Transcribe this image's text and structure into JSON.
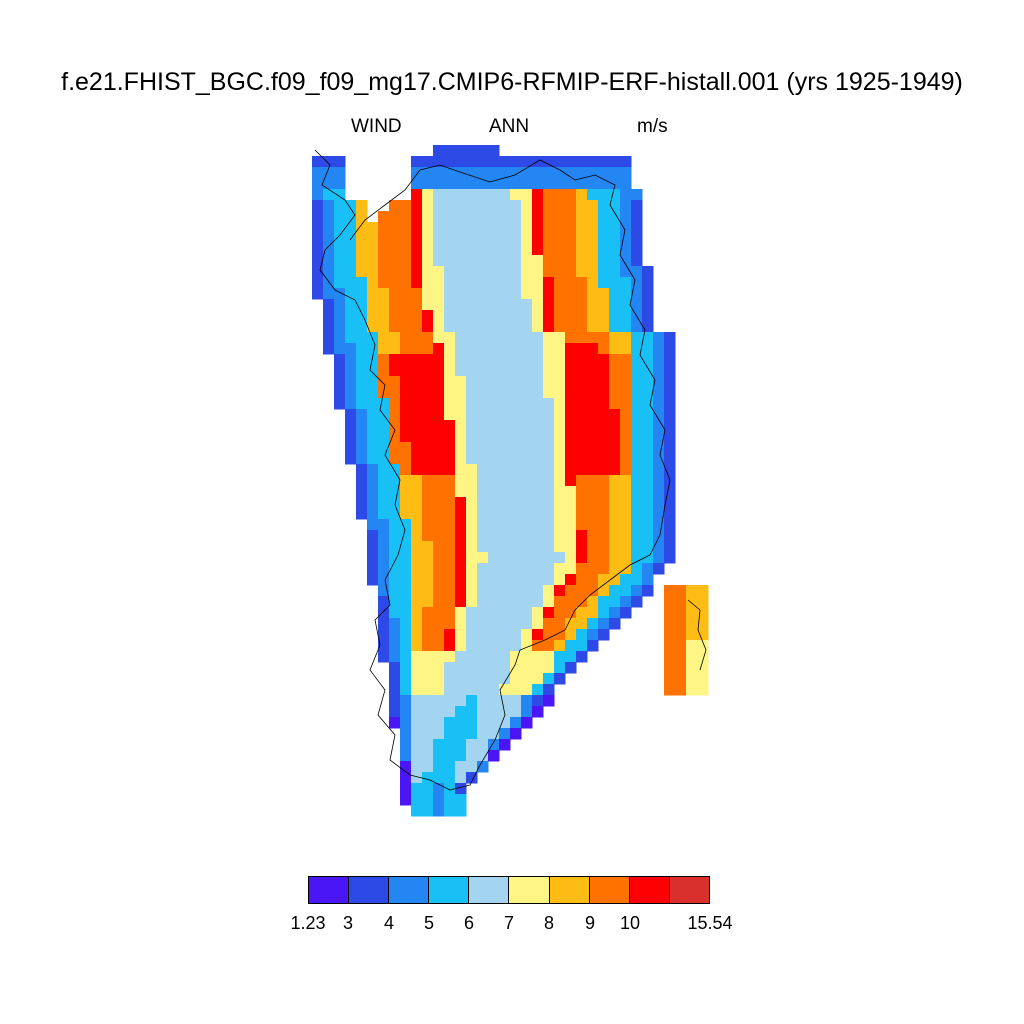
{
  "title": "f.e21.FHIST_BGC.f09_f09_mg17.CMIP6-RFMIP-ERF-histall.001 (yrs 1925-1949)",
  "left_string": "WIND",
  "center_string": "ANN",
  "right_string": "m/s",
  "colorbar": {
    "colors": [
      "#4a16f5",
      "#2e4ae6",
      "#2386f2",
      "#18c0f5",
      "#a3d5f0",
      "#fff584",
      "#ffbc14",
      "#ff7200",
      "#ff0000",
      "#d9302d"
    ],
    "labels": [
      "1.23",
      "3",
      "4",
      "5",
      "6",
      "7",
      "8",
      "9",
      "10",
      "15.54"
    ]
  },
  "chart_data": {
    "type": "heatmap",
    "variable": "WIND",
    "season": "ANN",
    "units": "m/s",
    "data_range": [
      1.23,
      15.54
    ],
    "levels": [
      3,
      4,
      5,
      6,
      7,
      8,
      9,
      10
    ],
    "region_description_values": {
      "coastal_band_typical": 4,
      "inner_ring_typical": 6,
      "slope_band_typical": 8.5,
      "interior_ridge_typical": 6.5,
      "west_slope_max": 11,
      "east_slope_max": 11
    }
  }
}
